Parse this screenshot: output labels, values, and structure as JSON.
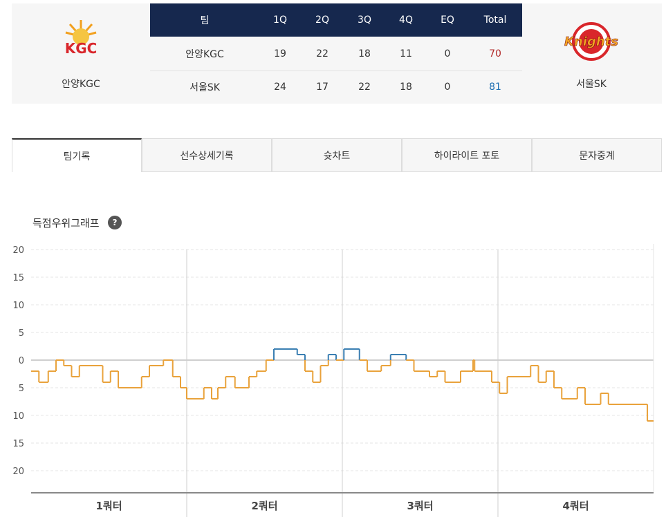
{
  "scoreboard": {
    "header": [
      "팀",
      "1Q",
      "2Q",
      "3Q",
      "4Q",
      "EQ",
      "Total"
    ],
    "rows": [
      [
        "안양KGC",
        "19",
        "22",
        "18",
        "11",
        "0",
        "70"
      ],
      [
        "서울SK",
        "24",
        "17",
        "22",
        "18",
        "0",
        "81"
      ]
    ],
    "home": {
      "name": "안양KGC",
      "logo_text": "KGC"
    },
    "away": {
      "name": "서울SK",
      "logo_text": "Knights"
    }
  },
  "tabs": [
    "팀기록",
    "선수상세기록",
    "슛차트",
    "하이라이트 포토",
    "문자중계"
  ],
  "chart_data": {
    "type": "step",
    "title": "득점우위그래프",
    "help_icon": "?",
    "categories": [
      "1쿼터",
      "2쿼터",
      "3쿼터",
      "4쿼터"
    ],
    "x": [
      0,
      0.5,
      1.1,
      1.6,
      2.1,
      2.6,
      3.1,
      4.6,
      5.1,
      5.6,
      7.1,
      7.6,
      8.5,
      9.1,
      9.6,
      10.0,
      11.1,
      11.6,
      12.0,
      12.5,
      13.1,
      14.0,
      14.5,
      15.1,
      15.6,
      17.1,
      17.6,
      18.1,
      18.6,
      19.1,
      19.6,
      20.1,
      21.1,
      21.6,
      22.5,
      23.1,
      24.1,
      24.6,
      25.6,
      26.1,
      26.6,
      27.6,
      28.4,
      28.5,
      29.6,
      30.1,
      30.6,
      32.1,
      32.6,
      33.1,
      33.6,
      34.1,
      35.1,
      35.6,
      36.6,
      37.1,
      39.6
    ],
    "values": [
      -2,
      -4,
      -2,
      0,
      -1,
      -3,
      -1,
      -4,
      -2,
      -5,
      -3,
      -1,
      0,
      -3,
      -5,
      -7,
      -5,
      -7,
      -5,
      -3,
      -5,
      -3,
      -2,
      0,
      2,
      1,
      -2,
      -4,
      -1,
      1,
      0,
      2,
      0,
      -2,
      -1,
      1,
      0,
      -2,
      -3,
      -2,
      -4,
      -2,
      0,
      -2,
      -4,
      -6,
      -3,
      -1,
      -4,
      -2,
      -5,
      -7,
      -5,
      -8,
      -6,
      -8,
      -11
    ],
    "xlim": [
      0,
      40
    ],
    "ylim": [
      -24,
      21
    ],
    "yticks": [
      20,
      15,
      10,
      5,
      0,
      {
        "value": -5,
        "label": "5"
      },
      {
        "value": -10,
        "label": "10"
      },
      {
        "value": -15,
        "label": "15"
      },
      {
        "value": -20,
        "label": "20"
      }
    ],
    "color_above": "#3b7fb2",
    "color_below": "#e9a23b",
    "grid": true
  }
}
